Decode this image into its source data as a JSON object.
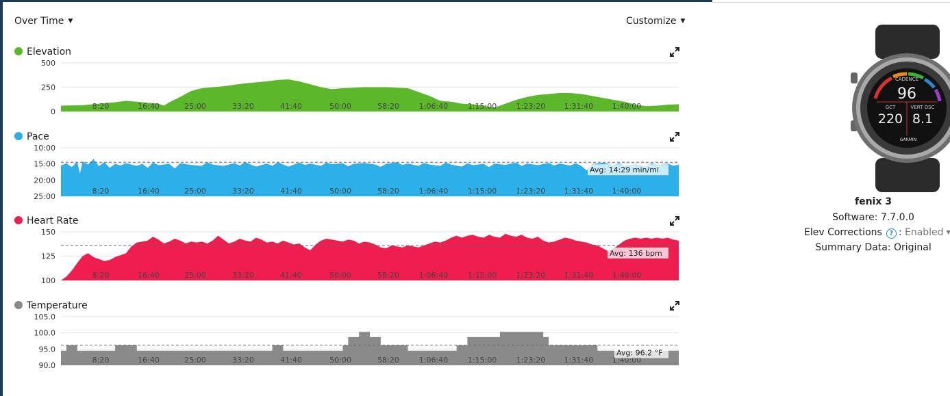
{
  "header": {
    "over_time_label": "Over Time",
    "customize_label": "Customize"
  },
  "time_ticks": [
    "8:20",
    "16:40",
    "25:00",
    "33:20",
    "41:40",
    "50:00",
    "58:20",
    "1:06:40",
    "1:15:00",
    "1:23:20",
    "1:31:40",
    "1:40:00"
  ],
  "charts": [
    {
      "key": "elevation",
      "title": "Elevation",
      "color": "#5cb82a",
      "y_ticks": [
        "500",
        "250",
        "0"
      ],
      "y_values": [
        500,
        250,
        0
      ],
      "ylim": [
        0,
        500
      ],
      "avg_label": "",
      "series": [
        [
          0,
          60
        ],
        [
          4,
          65
        ],
        [
          6,
          75
        ],
        [
          8,
          85
        ],
        [
          10,
          95
        ],
        [
          12,
          110
        ],
        [
          14,
          100
        ],
        [
          16,
          90
        ],
        [
          18,
          80
        ],
        [
          19,
          60
        ],
        [
          20,
          95
        ],
        [
          22,
          150
        ],
        [
          24,
          210
        ],
        [
          26,
          240
        ],
        [
          28,
          250
        ],
        [
          30,
          260
        ],
        [
          32,
          275
        ],
        [
          34,
          290
        ],
        [
          36,
          300
        ],
        [
          38,
          310
        ],
        [
          40,
          325
        ],
        [
          42,
          330
        ],
        [
          44,
          310
        ],
        [
          46,
          280
        ],
        [
          48,
          250
        ],
        [
          50,
          230
        ],
        [
          52,
          240
        ],
        [
          54,
          245
        ],
        [
          56,
          250
        ],
        [
          58,
          250
        ],
        [
          60,
          250
        ],
        [
          62,
          245
        ],
        [
          64,
          240
        ],
        [
          66,
          200
        ],
        [
          68,
          160
        ],
        [
          70,
          110
        ],
        [
          72,
          100
        ],
        [
          74,
          80
        ],
        [
          76,
          75
        ],
        [
          78,
          60
        ],
        [
          80,
          40
        ],
        [
          82,
          80
        ],
        [
          84,
          120
        ],
        [
          86,
          150
        ],
        [
          88,
          170
        ],
        [
          90,
          180
        ],
        [
          92,
          190
        ],
        [
          94,
          190
        ],
        [
          96,
          180
        ],
        [
          98,
          160
        ],
        [
          100,
          140
        ],
        [
          102,
          120
        ],
        [
          104,
          100
        ],
        [
          106,
          70
        ],
        [
          108,
          55
        ],
        [
          110,
          60
        ],
        [
          112,
          70
        ],
        [
          114,
          75
        ]
      ],
      "xmax": 114
    },
    {
      "key": "pace",
      "title": "Pace",
      "color": "#2bb0ea",
      "y_ticks": [
        "10:00",
        "15:00",
        "20:00",
        "25:00"
      ],
      "y_values": [
        10,
        15,
        20,
        25
      ],
      "ylim": [
        10,
        25
      ],
      "inverted": true,
      "avg_label": "Avg: 14:29 min/mi",
      "avg_value": 14.48,
      "avg_box_x": 858,
      "series": [
        [
          0,
          15.5
        ],
        [
          1,
          14.8
        ],
        [
          2,
          16
        ],
        [
          3,
          14.3
        ],
        [
          3.5,
          18
        ],
        [
          4,
          14.2
        ],
        [
          5,
          15.2
        ],
        [
          6,
          13.5
        ],
        [
          7,
          15.7
        ],
        [
          8,
          14.5
        ],
        [
          9,
          16.2
        ],
        [
          10,
          15.0
        ],
        [
          11,
          15.5
        ],
        [
          12,
          14.8
        ],
        [
          14,
          15.6
        ],
        [
          15,
          15.0
        ],
        [
          16,
          16.2
        ],
        [
          17,
          14.6
        ],
        [
          18,
          15.4
        ],
        [
          20,
          15.0
        ],
        [
          21,
          16.4
        ],
        [
          22,
          14.8
        ],
        [
          24,
          15.3
        ],
        [
          26,
          15.6
        ],
        [
          27,
          14.5
        ],
        [
          28,
          15.2
        ],
        [
          30,
          15.6
        ],
        [
          32,
          14.8
        ],
        [
          33,
          15.5
        ],
        [
          34,
          14.4
        ],
        [
          35,
          15.2
        ],
        [
          36,
          15.8
        ],
        [
          38,
          14.9
        ],
        [
          39,
          15.6
        ],
        [
          40,
          14.5
        ],
        [
          41,
          15.2
        ],
        [
          42,
          15.8
        ],
        [
          44,
          14.6
        ],
        [
          45,
          15.3
        ],
        [
          46,
          14.9
        ],
        [
          48,
          15.6
        ],
        [
          49,
          14.6
        ],
        [
          50,
          15.1
        ],
        [
          52,
          14.8
        ],
        [
          53,
          15.7
        ],
        [
          54,
          15.0
        ],
        [
          56,
          14.7
        ],
        [
          58,
          15.2
        ],
        [
          59,
          15.9
        ],
        [
          60,
          15.0
        ],
        [
          62,
          14.5
        ],
        [
          63,
          15.3
        ],
        [
          64,
          14.9
        ],
        [
          66,
          15.6
        ],
        [
          67,
          14.7
        ],
        [
          68,
          15.2
        ],
        [
          70,
          15.6
        ],
        [
          71,
          14.6
        ],
        [
          72,
          15.2
        ],
        [
          74,
          15.8
        ],
        [
          75,
          14.8
        ],
        [
          76,
          15.4
        ],
        [
          78,
          15.0
        ],
        [
          79,
          16.0
        ],
        [
          80,
          14.9
        ],
        [
          82,
          15.3
        ],
        [
          84,
          14.6
        ],
        [
          85,
          15.6
        ],
        [
          86,
          14.9
        ],
        [
          88,
          15.4
        ],
        [
          90,
          14.7
        ],
        [
          91,
          15.5
        ],
        [
          92,
          14.9
        ],
        [
          94,
          15.5
        ],
        [
          95,
          14.8
        ],
        [
          96,
          15.6
        ],
        [
          97,
          17.0
        ],
        [
          98,
          15.1
        ],
        [
          100,
          14.6
        ],
        [
          102,
          15.4
        ],
        [
          103,
          14.8
        ],
        [
          104,
          15.6
        ],
        [
          106,
          15.1
        ],
        [
          108,
          15.8
        ],
        [
          109,
          14.8
        ],
        [
          110,
          15.3
        ],
        [
          112,
          14.9
        ],
        [
          113,
          15.6
        ],
        [
          114,
          15.2
        ]
      ],
      "xmax": 114
    },
    {
      "key": "heart_rate",
      "title": "Heart Rate",
      "color": "#f01e4f",
      "y_ticks": [
        "150",
        "125",
        "100"
      ],
      "y_values": [
        150,
        125,
        100
      ],
      "ylim": [
        100,
        150
      ],
      "avg_label": "Avg: 136 bpm",
      "avg_value": 136,
      "avg_box_x": 887,
      "series": [
        [
          0,
          100
        ],
        [
          1,
          104
        ],
        [
          2,
          110
        ],
        [
          3,
          118
        ],
        [
          4,
          125
        ],
        [
          5,
          128
        ],
        [
          6,
          124
        ],
        [
          7,
          122
        ],
        [
          8,
          120
        ],
        [
          9,
          121
        ],
        [
          10,
          124
        ],
        [
          11,
          126
        ],
        [
          12,
          128
        ],
        [
          13,
          135
        ],
        [
          14,
          139
        ],
        [
          15,
          140
        ],
        [
          16,
          141
        ],
        [
          17,
          145
        ],
        [
          18,
          142
        ],
        [
          19,
          138
        ],
        [
          20,
          140
        ],
        [
          21,
          143
        ],
        [
          22,
          141
        ],
        [
          23,
          138
        ],
        [
          24,
          140
        ],
        [
          25,
          139
        ],
        [
          26,
          140
        ],
        [
          27,
          138
        ],
        [
          28,
          141
        ],
        [
          29,
          146
        ],
        [
          30,
          142
        ],
        [
          31,
          138
        ],
        [
          32,
          140
        ],
        [
          33,
          143
        ],
        [
          34,
          141
        ],
        [
          35,
          140
        ],
        [
          36,
          144
        ],
        [
          37,
          142
        ],
        [
          38,
          139
        ],
        [
          39,
          140
        ],
        [
          40,
          138
        ],
        [
          41,
          141
        ],
        [
          42,
          139
        ],
        [
          43,
          137
        ],
        [
          44,
          138
        ],
        [
          45,
          134
        ],
        [
          46,
          131
        ],
        [
          47,
          137
        ],
        [
          48,
          141
        ],
        [
          49,
          143
        ],
        [
          50,
          142
        ],
        [
          51,
          141
        ],
        [
          52,
          140
        ],
        [
          53,
          142
        ],
        [
          54,
          141
        ],
        [
          55,
          138
        ],
        [
          56,
          140
        ],
        [
          57,
          139
        ],
        [
          58,
          137
        ],
        [
          59,
          134
        ],
        [
          60,
          133
        ],
        [
          61,
          136
        ],
        [
          62,
          135
        ],
        [
          63,
          134
        ],
        [
          64,
          136
        ],
        [
          65,
          135
        ],
        [
          66,
          134
        ],
        [
          67,
          136
        ],
        [
          68,
          138
        ],
        [
          69,
          140
        ],
        [
          70,
          139
        ],
        [
          71,
          141
        ],
        [
          72,
          144
        ],
        [
          73,
          146
        ],
        [
          74,
          144
        ],
        [
          75,
          146
        ],
        [
          76,
          147
        ],
        [
          77,
          145
        ],
        [
          78,
          144
        ],
        [
          79,
          147
        ],
        [
          80,
          145
        ],
        [
          81,
          144
        ],
        [
          82,
          148
        ],
        [
          83,
          146
        ],
        [
          84,
          145
        ],
        [
          85,
          147
        ],
        [
          86,
          144
        ],
        [
          87,
          143
        ],
        [
          88,
          145
        ],
        [
          89,
          141
        ],
        [
          90,
          139
        ],
        [
          91,
          140
        ],
        [
          92,
          142
        ],
        [
          93,
          144
        ],
        [
          94,
          143
        ],
        [
          95,
          141
        ],
        [
          96,
          140
        ],
        [
          97,
          139
        ],
        [
          98,
          137
        ],
        [
          99,
          136
        ],
        [
          100,
          133
        ],
        [
          101,
          130
        ],
        [
          102,
          133
        ],
        [
          103,
          137
        ],
        [
          104,
          141
        ],
        [
          105,
          143
        ],
        [
          106,
          144
        ],
        [
          107,
          143
        ],
        [
          108,
          144
        ],
        [
          109,
          143
        ],
        [
          110,
          144
        ],
        [
          111,
          143
        ],
        [
          112,
          144
        ],
        [
          113,
          142
        ],
        [
          114,
          141
        ]
      ],
      "xmax": 114
    },
    {
      "key": "temperature",
      "title": "Temperature",
      "color": "#8a8a8a",
      "y_ticks": [
        "105.0",
        "100.0",
        "95.0",
        "90.0"
      ],
      "y_values": [
        105,
        100,
        95,
        90
      ],
      "ylim": [
        90,
        105
      ],
      "step": true,
      "avg_label": "Avg: 96.2 °F",
      "avg_value": 96.2,
      "avg_box_x": 897,
      "series": [
        [
          0,
          94.5
        ],
        [
          1,
          96.2
        ],
        [
          3,
          94.5
        ],
        [
          10,
          96.2
        ],
        [
          14,
          94.5
        ],
        [
          39,
          96.2
        ],
        [
          41,
          94.5
        ],
        [
          52,
          96.2
        ],
        [
          53,
          98.7
        ],
        [
          55,
          100.3
        ],
        [
          57,
          98.7
        ],
        [
          59,
          96.2
        ],
        [
          64,
          94.5
        ],
        [
          73,
          96.2
        ],
        [
          75,
          98.7
        ],
        [
          81,
          100.3
        ],
        [
          89,
          98.7
        ],
        [
          90,
          96.2
        ],
        [
          99,
          94.5
        ],
        [
          114,
          94.5
        ]
      ],
      "xmax": 114
    }
  ],
  "device": {
    "name": "fenix 3",
    "software_label": "Software:",
    "software_version": "7.7.0.0",
    "elev_label": "Elev Corrections",
    "elev_colon": ":",
    "elev_value": "Enabled",
    "summary_label": "Summary Data:",
    "summary_value": "Original",
    "watch_face": {
      "brand": "GARMIN",
      "center_label": "CADENCE",
      "center_value": "96",
      "left_label": "GCT",
      "left_value": "220",
      "right_label": "VERT OSC",
      "right_value": "8.1"
    }
  }
}
